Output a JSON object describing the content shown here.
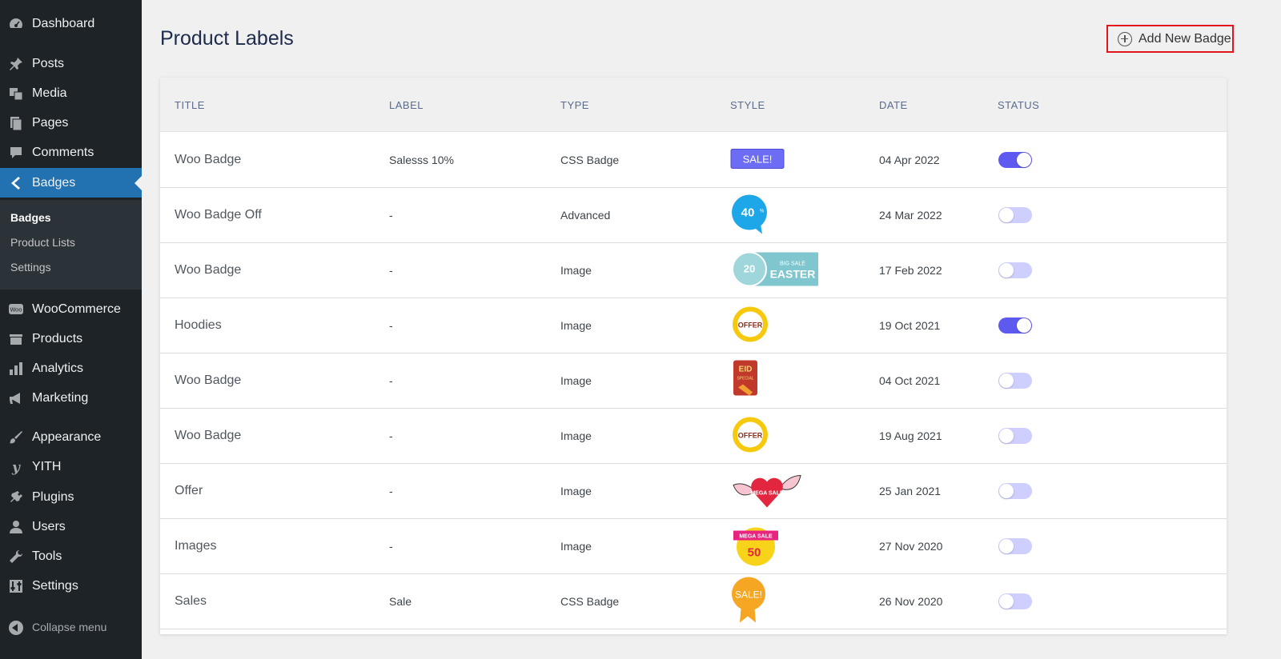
{
  "sidebar": {
    "items": [
      {
        "key": "dashboard",
        "label": "Dashboard",
        "icon": "dashboard-icon"
      },
      {
        "key": "posts",
        "label": "Posts",
        "icon": "pin-icon"
      },
      {
        "key": "media",
        "label": "Media",
        "icon": "media-icon"
      },
      {
        "key": "pages",
        "label": "Pages",
        "icon": "pages-icon"
      },
      {
        "key": "comments",
        "label": "Comments",
        "icon": "comment-icon"
      },
      {
        "key": "badges",
        "label": "Badges",
        "icon": "badge-chevron-icon"
      },
      {
        "key": "woocommerce",
        "label": "WooCommerce",
        "icon": "woo-icon"
      },
      {
        "key": "products",
        "label": "Products",
        "icon": "box-icon"
      },
      {
        "key": "analytics",
        "label": "Analytics",
        "icon": "bar-chart-icon"
      },
      {
        "key": "marketing",
        "label": "Marketing",
        "icon": "megaphone-icon"
      },
      {
        "key": "appearance",
        "label": "Appearance",
        "icon": "brush-icon"
      },
      {
        "key": "yith",
        "label": "YITH",
        "icon": "yith-icon"
      },
      {
        "key": "plugins",
        "label": "Plugins",
        "icon": "plug-icon"
      },
      {
        "key": "users",
        "label": "Users",
        "icon": "user-icon"
      },
      {
        "key": "tools",
        "label": "Tools",
        "icon": "wrench-icon"
      },
      {
        "key": "settings",
        "label": "Settings",
        "icon": "sliders-icon"
      }
    ],
    "submenu": [
      "Badges",
      "Product Lists",
      "Settings"
    ],
    "collapse_label": "Collapse menu"
  },
  "header": {
    "title": "Product Labels",
    "add_button_label": "Add New Badge",
    "add_button_icon": "plus-circle-icon"
  },
  "table": {
    "columns": [
      "TITLE",
      "LABEL",
      "TYPE",
      "STYLE",
      "DATE",
      "STATUS"
    ],
    "rows": [
      {
        "title": "Woo Badge",
        "label": "Salesss 10%",
        "type": "CSS Badge",
        "style": "css-sale-rect",
        "style_text": "SALE!",
        "date": "04 Apr 2022",
        "enabled": true
      },
      {
        "title": "Woo Badge Off",
        "label": "-",
        "type": "Advanced",
        "style": "blue-40-off",
        "style_text": "40",
        "date": "24 Mar 2022",
        "enabled": false
      },
      {
        "title": "Woo Badge",
        "label": "-",
        "type": "Image",
        "style": "easter-big-sale",
        "style_text": "EASTER",
        "date": "17 Feb 2022",
        "enabled": false
      },
      {
        "title": "Hoodies",
        "label": "-",
        "type": "Image",
        "style": "special-offer-ring",
        "style_text": "OFFER",
        "date": "19 Oct 2021",
        "enabled": true
      },
      {
        "title": "Woo Badge",
        "label": "-",
        "type": "Image",
        "style": "eid-special-sale",
        "style_text": "EID",
        "date": "04 Oct 2021",
        "enabled": false
      },
      {
        "title": "Woo Badge",
        "label": "-",
        "type": "Image",
        "style": "special-offer-ring",
        "style_text": "OFFER",
        "date": "19 Aug 2021",
        "enabled": false
      },
      {
        "title": "Offer",
        "label": "-",
        "type": "Image",
        "style": "winged-heart-mega-sale",
        "style_text": "MEGA SALE",
        "date": "25 Jan 2021",
        "enabled": false
      },
      {
        "title": "Images",
        "label": "-",
        "type": "Image",
        "style": "mega-sale-50",
        "style_text": "50",
        "date": "27 Nov 2020",
        "enabled": false
      },
      {
        "title": "Sales",
        "label": "Sale",
        "type": "CSS Badge",
        "style": "css-sale-ribbon",
        "style_text": "SALE!",
        "date": "26 Nov 2020",
        "enabled": false
      }
    ]
  },
  "colors": {
    "sidebar_bg": "#1d2327",
    "active_menu": "#2271b1",
    "toggle_on": "#5e5af0",
    "toggle_off": "#cfcfff",
    "highlight_border": "#e0161c"
  }
}
